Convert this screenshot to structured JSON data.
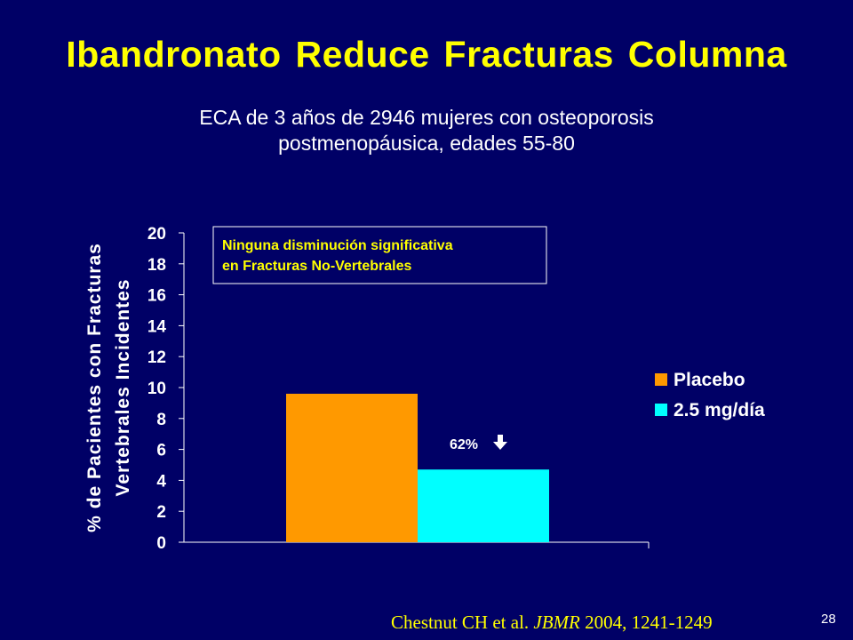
{
  "slide": {
    "title": "Ibandronato Reduce Fracturas Columna",
    "subtitle_line1": "ECA de 3 años de 2946 mujeres con osteoporosis",
    "subtitle_line2": "postmenopáusica, edades 55-80",
    "citation_author": "Chestnut CH et al.",
    "citation_journal": "JBMR",
    "citation_rest": "2004, 1241-1249",
    "slide_number": "28"
  },
  "colors": {
    "background": "#000066",
    "title": "#FFFF00",
    "axis": "#FFFFFF",
    "placebo": "#FF9900",
    "treatment": "#00FFFF"
  },
  "chart_data": {
    "type": "bar",
    "ylabel_line1": "% de Pacientes con Fracturas",
    "ylabel_line2": "Vertebrales Incidentes",
    "ylim": [
      0,
      20
    ],
    "yticks": [
      "0",
      "2",
      "4",
      "6",
      "8",
      "10",
      "12",
      "14",
      "16",
      "18",
      "20"
    ],
    "grid": false,
    "legend_position": "right",
    "series": [
      {
        "name": "Placebo",
        "value": 9.6,
        "color": "#FF9900"
      },
      {
        "name": "2.5 mg/día",
        "value": 4.7,
        "color": "#00FFFF"
      }
    ],
    "annotations": {
      "reduction_label": "62%",
      "reduction_arrow": "down-arrow-icon",
      "note_line1": "Ninguna disminución significativa",
      "note_line2": "en Fracturas No-Vertebrales"
    }
  }
}
